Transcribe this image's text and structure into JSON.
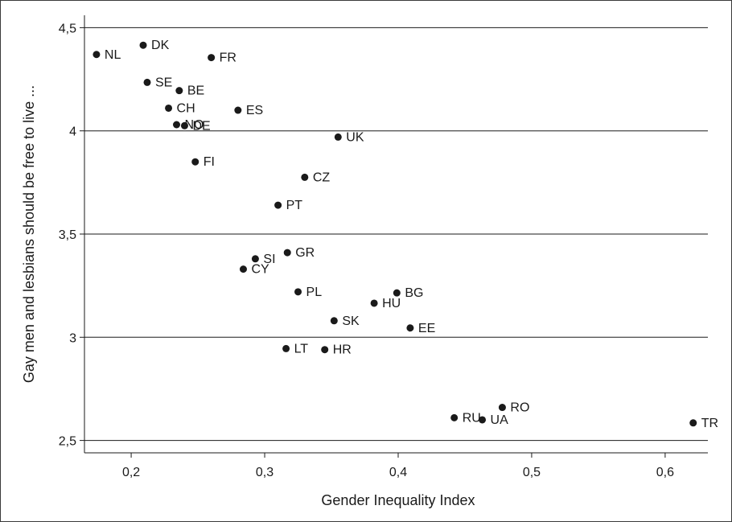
{
  "chart_data": {
    "type": "scatter",
    "xlabel": "Gender Inequality Index",
    "ylabel": "Gay men and lesbians should be free to live ...",
    "xlim": [
      0.165,
      0.632
    ],
    "ylim": [
      2.44,
      4.56
    ],
    "x_ticks": [
      {
        "value": 0.2,
        "label": "0,2"
      },
      {
        "value": 0.3,
        "label": "0,3"
      },
      {
        "value": 0.4,
        "label": "0,4"
      },
      {
        "value": 0.5,
        "label": "0,5"
      },
      {
        "value": 0.6,
        "label": "0,6"
      }
    ],
    "y_ticks": [
      {
        "value": 2.5,
        "label": "2,5"
      },
      {
        "value": 3,
        "label": "3"
      },
      {
        "value": 3.5,
        "label": "3,5"
      },
      {
        "value": 4,
        "label": "4"
      },
      {
        "value": 4.5,
        "label": "4,5"
      }
    ],
    "grid": "horizontal",
    "point_color": "#1a1a1a",
    "points": [
      {
        "label": "NL",
        "x": 0.174,
        "y": 4.37
      },
      {
        "label": "DK",
        "x": 0.209,
        "y": 4.415
      },
      {
        "label": "FR",
        "x": 0.26,
        "y": 4.355
      },
      {
        "label": "SE",
        "x": 0.212,
        "y": 4.235
      },
      {
        "label": "BE",
        "x": 0.236,
        "y": 4.195
      },
      {
        "label": "CH",
        "x": 0.228,
        "y": 4.11
      },
      {
        "label": "ES",
        "x": 0.28,
        "y": 4.1
      },
      {
        "label": "NO",
        "x": 0.234,
        "y": 4.03
      },
      {
        "label": "DE",
        "x": 0.24,
        "y": 4.025
      },
      {
        "label": "UK",
        "x": 0.355,
        "y": 3.97
      },
      {
        "label": "FI",
        "x": 0.248,
        "y": 3.85
      },
      {
        "label": "CZ",
        "x": 0.33,
        "y": 3.775
      },
      {
        "label": "PT",
        "x": 0.31,
        "y": 3.64
      },
      {
        "label": "GR",
        "x": 0.317,
        "y": 3.41
      },
      {
        "label": "SI",
        "x": 0.293,
        "y": 3.38
      },
      {
        "label": "CY",
        "x": 0.284,
        "y": 3.33
      },
      {
        "label": "PL",
        "x": 0.325,
        "y": 3.22
      },
      {
        "label": "BG",
        "x": 0.399,
        "y": 3.215
      },
      {
        "label": "HU",
        "x": 0.382,
        "y": 3.165
      },
      {
        "label": "SK",
        "x": 0.352,
        "y": 3.08
      },
      {
        "label": "EE",
        "x": 0.409,
        "y": 3.045
      },
      {
        "label": "LT",
        "x": 0.316,
        "y": 2.945
      },
      {
        "label": "HR",
        "x": 0.345,
        "y": 2.94
      },
      {
        "label": "RO",
        "x": 0.478,
        "y": 2.66
      },
      {
        "label": "RU",
        "x": 0.442,
        "y": 2.61
      },
      {
        "label": "UA",
        "x": 0.463,
        "y": 2.6
      },
      {
        "label": "TR",
        "x": 0.621,
        "y": 2.585
      }
    ]
  }
}
